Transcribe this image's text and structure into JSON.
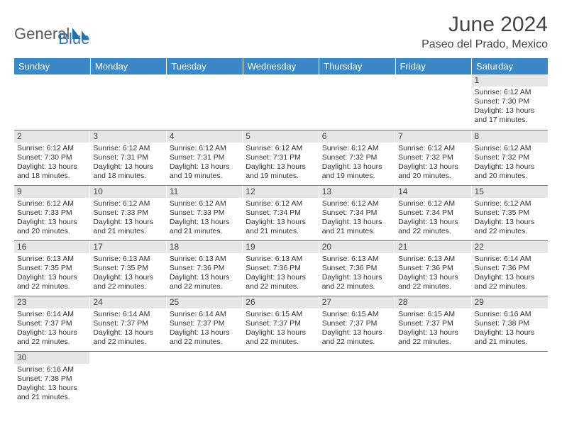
{
  "brand": {
    "part1": "General",
    "part2": "Blue"
  },
  "title": "June 2024",
  "location": "Paseo del Prado, Mexico",
  "colors": {
    "header_bg": "#3b87c8",
    "header_text": "#ffffff",
    "daynum_bg": "#e6e6e6",
    "border": "#3b87c8",
    "logo_gray": "#5b5b5b",
    "logo_blue": "#2a74b8"
  },
  "weekdays": [
    "Sunday",
    "Monday",
    "Tuesday",
    "Wednesday",
    "Thursday",
    "Friday",
    "Saturday"
  ],
  "weeks": [
    [
      {
        "n": "",
        "lines": []
      },
      {
        "n": "",
        "lines": []
      },
      {
        "n": "",
        "lines": []
      },
      {
        "n": "",
        "lines": []
      },
      {
        "n": "",
        "lines": []
      },
      {
        "n": "",
        "lines": []
      },
      {
        "n": "1",
        "lines": [
          "Sunrise: 6:12 AM",
          "Sunset: 7:30 PM",
          "Daylight: 13 hours and 17 minutes."
        ]
      }
    ],
    [
      {
        "n": "2",
        "lines": [
          "Sunrise: 6:12 AM",
          "Sunset: 7:30 PM",
          "Daylight: 13 hours and 18 minutes."
        ]
      },
      {
        "n": "3",
        "lines": [
          "Sunrise: 6:12 AM",
          "Sunset: 7:31 PM",
          "Daylight: 13 hours and 18 minutes."
        ]
      },
      {
        "n": "4",
        "lines": [
          "Sunrise: 6:12 AM",
          "Sunset: 7:31 PM",
          "Daylight: 13 hours and 19 minutes."
        ]
      },
      {
        "n": "5",
        "lines": [
          "Sunrise: 6:12 AM",
          "Sunset: 7:31 PM",
          "Daylight: 13 hours and 19 minutes."
        ]
      },
      {
        "n": "6",
        "lines": [
          "Sunrise: 6:12 AM",
          "Sunset: 7:32 PM",
          "Daylight: 13 hours and 19 minutes."
        ]
      },
      {
        "n": "7",
        "lines": [
          "Sunrise: 6:12 AM",
          "Sunset: 7:32 PM",
          "Daylight: 13 hours and 20 minutes."
        ]
      },
      {
        "n": "8",
        "lines": [
          "Sunrise: 6:12 AM",
          "Sunset: 7:32 PM",
          "Daylight: 13 hours and 20 minutes."
        ]
      }
    ],
    [
      {
        "n": "9",
        "lines": [
          "Sunrise: 6:12 AM",
          "Sunset: 7:33 PM",
          "Daylight: 13 hours and 20 minutes."
        ]
      },
      {
        "n": "10",
        "lines": [
          "Sunrise: 6:12 AM",
          "Sunset: 7:33 PM",
          "Daylight: 13 hours and 21 minutes."
        ]
      },
      {
        "n": "11",
        "lines": [
          "Sunrise: 6:12 AM",
          "Sunset: 7:33 PM",
          "Daylight: 13 hours and 21 minutes."
        ]
      },
      {
        "n": "12",
        "lines": [
          "Sunrise: 6:12 AM",
          "Sunset: 7:34 PM",
          "Daylight: 13 hours and 21 minutes."
        ]
      },
      {
        "n": "13",
        "lines": [
          "Sunrise: 6:12 AM",
          "Sunset: 7:34 PM",
          "Daylight: 13 hours and 21 minutes."
        ]
      },
      {
        "n": "14",
        "lines": [
          "Sunrise: 6:12 AM",
          "Sunset: 7:34 PM",
          "Daylight: 13 hours and 22 minutes."
        ]
      },
      {
        "n": "15",
        "lines": [
          "Sunrise: 6:12 AM",
          "Sunset: 7:35 PM",
          "Daylight: 13 hours and 22 minutes."
        ]
      }
    ],
    [
      {
        "n": "16",
        "lines": [
          "Sunrise: 6:13 AM",
          "Sunset: 7:35 PM",
          "Daylight: 13 hours and 22 minutes."
        ]
      },
      {
        "n": "17",
        "lines": [
          "Sunrise: 6:13 AM",
          "Sunset: 7:35 PM",
          "Daylight: 13 hours and 22 minutes."
        ]
      },
      {
        "n": "18",
        "lines": [
          "Sunrise: 6:13 AM",
          "Sunset: 7:36 PM",
          "Daylight: 13 hours and 22 minutes."
        ]
      },
      {
        "n": "19",
        "lines": [
          "Sunrise: 6:13 AM",
          "Sunset: 7:36 PM",
          "Daylight: 13 hours and 22 minutes."
        ]
      },
      {
        "n": "20",
        "lines": [
          "Sunrise: 6:13 AM",
          "Sunset: 7:36 PM",
          "Daylight: 13 hours and 22 minutes."
        ]
      },
      {
        "n": "21",
        "lines": [
          "Sunrise: 6:13 AM",
          "Sunset: 7:36 PM",
          "Daylight: 13 hours and 22 minutes."
        ]
      },
      {
        "n": "22",
        "lines": [
          "Sunrise: 6:14 AM",
          "Sunset: 7:36 PM",
          "Daylight: 13 hours and 22 minutes."
        ]
      }
    ],
    [
      {
        "n": "23",
        "lines": [
          "Sunrise: 6:14 AM",
          "Sunset: 7:37 PM",
          "Daylight: 13 hours and 22 minutes."
        ]
      },
      {
        "n": "24",
        "lines": [
          "Sunrise: 6:14 AM",
          "Sunset: 7:37 PM",
          "Daylight: 13 hours and 22 minutes."
        ]
      },
      {
        "n": "25",
        "lines": [
          "Sunrise: 6:14 AM",
          "Sunset: 7:37 PM",
          "Daylight: 13 hours and 22 minutes."
        ]
      },
      {
        "n": "26",
        "lines": [
          "Sunrise: 6:15 AM",
          "Sunset: 7:37 PM",
          "Daylight: 13 hours and 22 minutes."
        ]
      },
      {
        "n": "27",
        "lines": [
          "Sunrise: 6:15 AM",
          "Sunset: 7:37 PM",
          "Daylight: 13 hours and 22 minutes."
        ]
      },
      {
        "n": "28",
        "lines": [
          "Sunrise: 6:15 AM",
          "Sunset: 7:37 PM",
          "Daylight: 13 hours and 22 minutes."
        ]
      },
      {
        "n": "29",
        "lines": [
          "Sunrise: 6:16 AM",
          "Sunset: 7:38 PM",
          "Daylight: 13 hours and 21 minutes."
        ]
      }
    ],
    [
      {
        "n": "30",
        "lines": [
          "Sunrise: 6:16 AM",
          "Sunset: 7:38 PM",
          "Daylight: 13 hours and 21 minutes."
        ]
      },
      {
        "n": "",
        "lines": []
      },
      {
        "n": "",
        "lines": []
      },
      {
        "n": "",
        "lines": []
      },
      {
        "n": "",
        "lines": []
      },
      {
        "n": "",
        "lines": []
      },
      {
        "n": "",
        "lines": []
      }
    ]
  ]
}
